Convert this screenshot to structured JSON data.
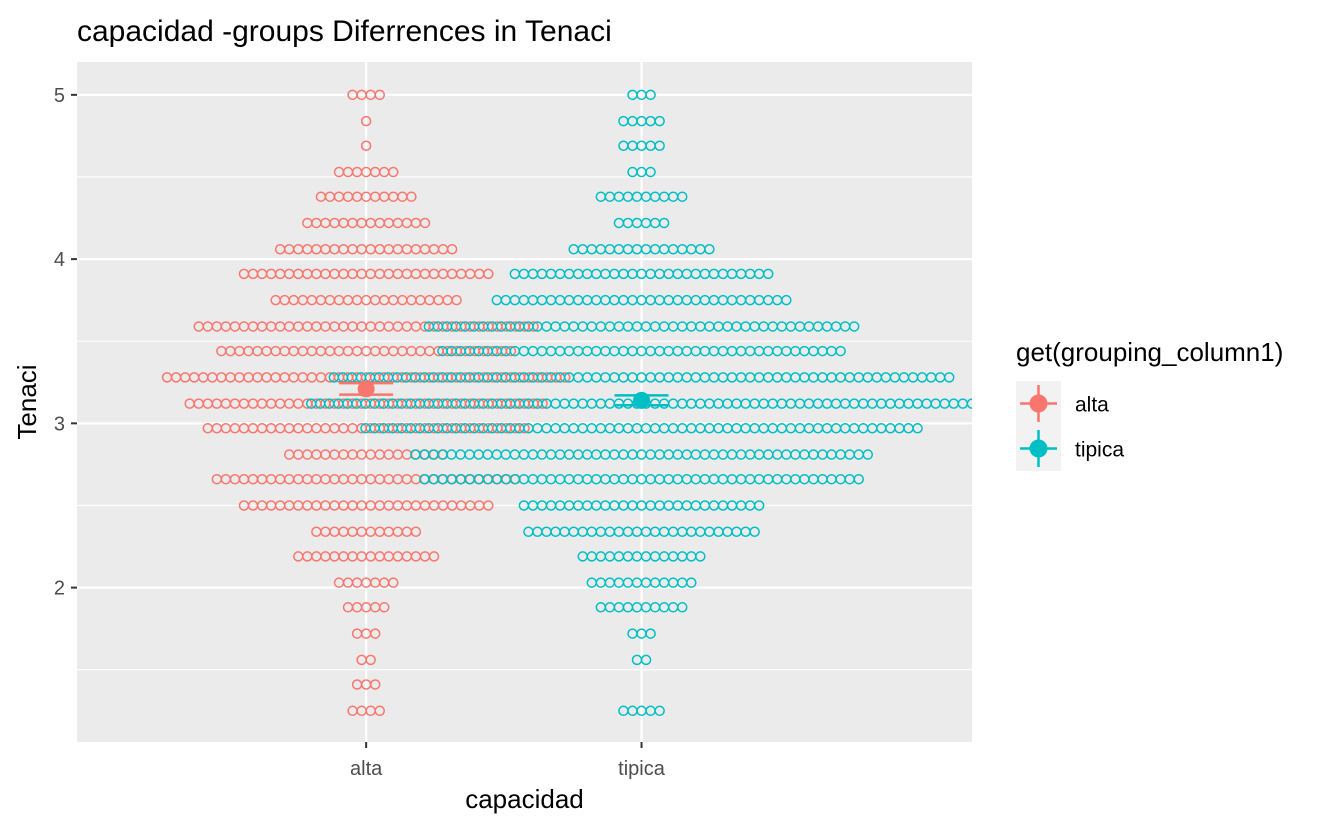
{
  "chart_data": {
    "type": "scatter",
    "subtype": "dotplot-with-mean-errorbars",
    "title": "capacidad -groups Diferrences in  Tenaci",
    "xlabel": "capacidad",
    "ylabel": "Tenaci",
    "categories": [
      "alta",
      "tipica"
    ],
    "y_ticks": [
      2,
      3,
      4,
      5
    ],
    "ylim": [
      1.06,
      5.2
    ],
    "grid": true,
    "legend": {
      "title": "get(grouping_column1)",
      "position": "right",
      "entries": [
        "alta",
        "tipica"
      ]
    },
    "colors": {
      "alta": "#F8766D",
      "tipica": "#00BFC4",
      "panel": "#EBEBEB",
      "grid": "#FFFFFF"
    },
    "series": [
      {
        "name": "alta",
        "category": "alta",
        "mean": 3.21,
        "se": 0.035,
        "bins": [
          {
            "y": 1.25,
            "count": 4
          },
          {
            "y": 1.41,
            "count": 3
          },
          {
            "y": 1.56,
            "count": 2
          },
          {
            "y": 1.72,
            "count": 3
          },
          {
            "y": 1.88,
            "count": 5
          },
          {
            "y": 2.03,
            "count": 7
          },
          {
            "y": 2.19,
            "count": 16
          },
          {
            "y": 2.34,
            "count": 12
          },
          {
            "y": 2.5,
            "count": 28
          },
          {
            "y": 2.66,
            "count": 34
          },
          {
            "y": 2.81,
            "count": 18
          },
          {
            "y": 2.97,
            "count": 36
          },
          {
            "y": 3.12,
            "count": 40
          },
          {
            "y": 3.28,
            "count": 45
          },
          {
            "y": 3.44,
            "count": 33
          },
          {
            "y": 3.59,
            "count": 38
          },
          {
            "y": 3.75,
            "count": 21
          },
          {
            "y": 3.91,
            "count": 28
          },
          {
            "y": 4.06,
            "count": 20
          },
          {
            "y": 4.22,
            "count": 14
          },
          {
            "y": 4.38,
            "count": 11
          },
          {
            "y": 4.53,
            "count": 7
          },
          {
            "y": 4.69,
            "count": 1
          },
          {
            "y": 4.84,
            "count": 1
          },
          {
            "y": 5.0,
            "count": 4
          }
        ]
      },
      {
        "name": "tipica",
        "category": "tipica",
        "mean": 3.14,
        "se": 0.03,
        "bins": [
          {
            "y": 1.25,
            "count": 5
          },
          {
            "y": 1.56,
            "count": 2
          },
          {
            "y": 1.72,
            "count": 3
          },
          {
            "y": 1.88,
            "count": 10
          },
          {
            "y": 2.03,
            "count": 12
          },
          {
            "y": 2.19,
            "count": 14
          },
          {
            "y": 2.34,
            "count": 26
          },
          {
            "y": 2.5,
            "count": 27
          },
          {
            "y": 2.66,
            "count": 49
          },
          {
            "y": 2.81,
            "count": 51
          },
          {
            "y": 2.97,
            "count": 62
          },
          {
            "y": 3.12,
            "count": 74
          },
          {
            "y": 3.28,
            "count": 69
          },
          {
            "y": 3.44,
            "count": 45
          },
          {
            "y": 3.59,
            "count": 48
          },
          {
            "y": 3.75,
            "count": 33
          },
          {
            "y": 3.91,
            "count": 29
          },
          {
            "y": 4.06,
            "count": 16
          },
          {
            "y": 4.22,
            "count": 6
          },
          {
            "y": 4.38,
            "count": 10
          },
          {
            "y": 4.53,
            "count": 3
          },
          {
            "y": 4.69,
            "count": 5
          },
          {
            "y": 4.84,
            "count": 5
          },
          {
            "y": 5.0,
            "count": 3
          }
        ]
      }
    ]
  }
}
